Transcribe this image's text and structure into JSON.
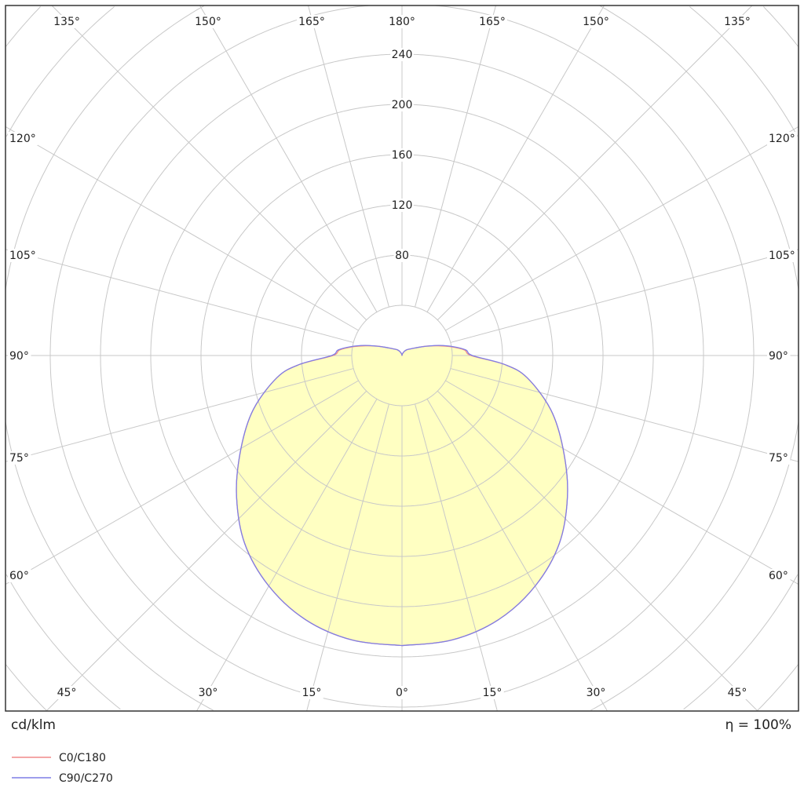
{
  "chart_data": {
    "type": "polar-line",
    "unit_label": "cd/klm",
    "efficiency_label": "η = 100%",
    "radial_ticks": [
      40,
      80,
      120,
      160,
      200,
      240,
      280,
      320,
      360,
      400
    ],
    "radial_tick_labels": [
      "80",
      "120",
      "160",
      "200",
      "240"
    ],
    "angle_labels": {
      "top": [
        "135°",
        "150°",
        "165°",
        "180°",
        "165°",
        "150°",
        "135°"
      ],
      "left": [
        "120°",
        "105°",
        "90°",
        "75°",
        "60°"
      ],
      "right": [
        "120°",
        "105°",
        "90°",
        "75°",
        "60°"
      ],
      "bottom": [
        "45°",
        "30°",
        "15°",
        "0°",
        "15°",
        "30°",
        "45°"
      ]
    },
    "angle_step_deg": 15,
    "grid": true,
    "legend_placement": "bottom-left",
    "fill_color": "#ffffbf",
    "angles_deg": [
      0,
      10,
      20,
      30,
      40,
      50,
      60,
      70,
      80,
      85,
      90,
      95,
      100,
      105,
      110,
      115,
      120,
      130,
      140,
      150,
      160,
      170,
      180
    ],
    "series": [
      {
        "name": "C0/C180",
        "color": "#f08a8a",
        "values": [
          231,
          230,
          224,
          212,
          195,
          172,
          148,
          126,
          101,
          82,
          55,
          50,
          40,
          30,
          22,
          16,
          12,
          8,
          6,
          4,
          2,
          1,
          0
        ]
      },
      {
        "name": "C90/C270",
        "color": "#7f7fe6",
        "values": [
          231,
          230,
          224,
          212,
          195,
          172,
          148,
          126,
          101,
          82,
          56,
          51,
          41,
          31,
          22,
          16,
          12,
          8,
          6,
          4,
          2,
          1,
          0
        ]
      }
    ]
  }
}
